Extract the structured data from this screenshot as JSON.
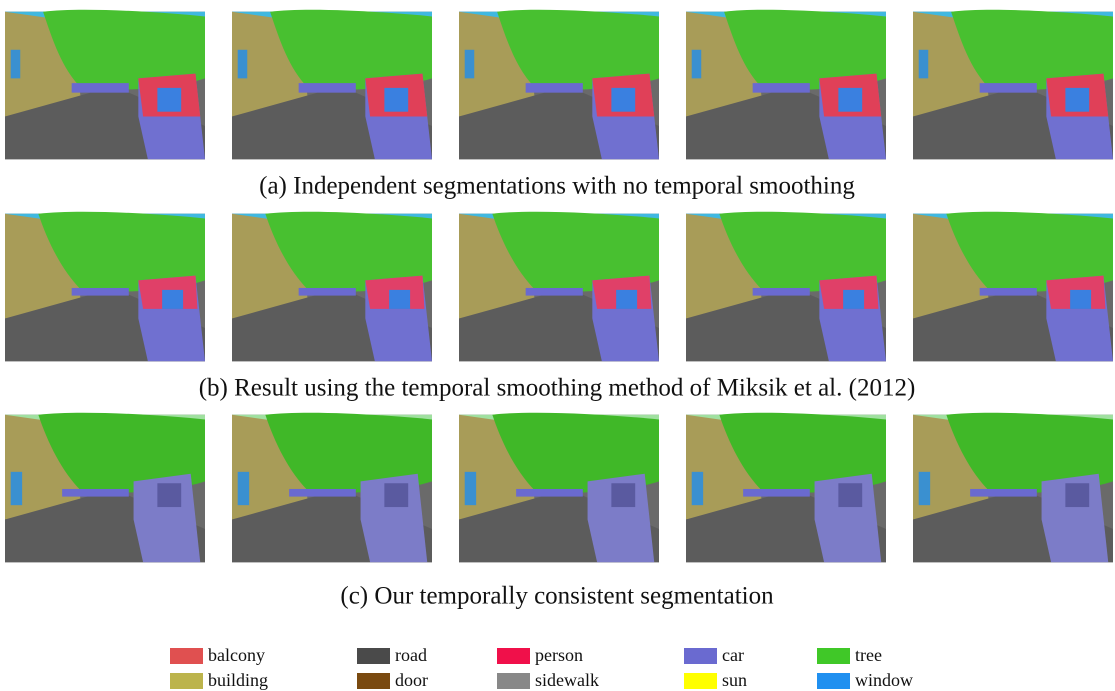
{
  "captions": [
    "(a) Independent segmentations with no temporal smoothing",
    "(b) Result using the temporal smoothing method of Miksik et al. (2012)",
    "(c) Our temporally consistent segmentation"
  ],
  "legend": [
    {
      "label": "balcony",
      "color": "#e05050"
    },
    {
      "label": "road",
      "color": "#4a4a4a"
    },
    {
      "label": "person",
      "color": "#f0104a"
    },
    {
      "label": "car",
      "color": "#6a6ad0"
    },
    {
      "label": "tree",
      "color": "#40c828"
    },
    {
      "label": "building",
      "color": "#bcb44c"
    },
    {
      "label": "door",
      "color": "#7a4a10"
    },
    {
      "label": "sidewalk",
      "color": "#888888"
    },
    {
      "label": "sun",
      "color": "#ffff00"
    },
    {
      "label": "window",
      "color": "#2090f0"
    }
  ]
}
